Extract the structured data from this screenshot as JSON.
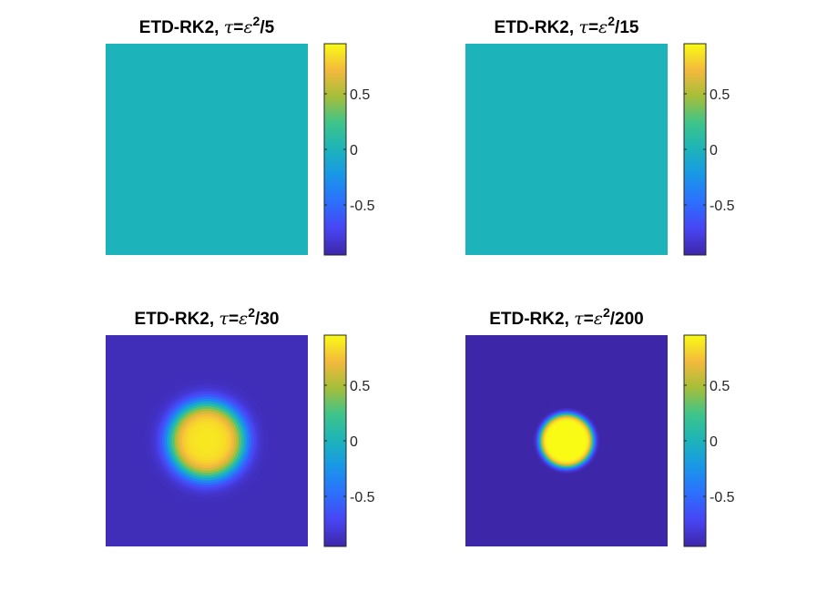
{
  "chart_data": [
    {
      "type": "heatmap",
      "title": "ETD-RK2, τ=ε²/5",
      "title_parts": {
        "prefix": "ETD-RK2, ",
        "tau": "τ",
        "eq": "=",
        "eps": "ε",
        "sup": "2",
        "suffix": "/5"
      },
      "field": {
        "background": 0.0,
        "inner_value": null,
        "inner_radius": 0,
        "interface_width": 0
      },
      "colorbar": {
        "colormap": "parula",
        "clim": [
          -0.95,
          0.95
        ],
        "ticks": [
          0.5,
          0,
          -0.5
        ],
        "tick_labels": [
          "0.5",
          "0",
          "-0.5"
        ]
      }
    },
    {
      "type": "heatmap",
      "title": "ETD-RK2, τ=ε²/15",
      "title_parts": {
        "prefix": "ETD-RK2, ",
        "tau": "τ",
        "eq": "=",
        "eps": "ε",
        "sup": "2",
        "suffix": "/15"
      },
      "field": {
        "background": 0.0,
        "inner_value": null,
        "inner_radius": 0,
        "interface_width": 0
      },
      "colorbar": {
        "colormap": "parula",
        "clim": [
          -0.95,
          0.95
        ],
        "ticks": [
          0.5,
          0,
          -0.5
        ],
        "tick_labels": [
          "0.5",
          "0",
          "-0.5"
        ]
      }
    },
    {
      "type": "heatmap",
      "title": "ETD-RK2, τ=ε²/30",
      "title_parts": {
        "prefix": "ETD-RK2, ",
        "tau": "τ",
        "eq": "=",
        "eps": "ε",
        "sup": "2",
        "suffix": "/30"
      },
      "field": {
        "background": -0.9,
        "inner_value": 0.88,
        "inner_radius": 0.19,
        "interface_width": 0.1
      },
      "colorbar": {
        "colormap": "parula",
        "clim": [
          -0.95,
          0.95
        ],
        "ticks": [
          0.5,
          0,
          -0.5
        ],
        "tick_labels": [
          "0.5",
          "0",
          "-0.5"
        ]
      }
    },
    {
      "type": "heatmap",
      "title": "ETD-RK2, τ=ε²/200",
      "title_parts": {
        "prefix": "ETD-RK2, ",
        "tau": "τ",
        "eq": "=",
        "eps": "ε",
        "sup": "2",
        "suffix": "/200"
      },
      "field": {
        "background": -0.98,
        "inner_value": 0.97,
        "inner_radius": 0.135,
        "interface_width": 0.035
      },
      "colorbar": {
        "colormap": "parula",
        "clim": [
          -0.95,
          0.95
        ],
        "ticks": [
          0.5,
          0,
          -0.5
        ],
        "tick_labels": [
          "0.5",
          "0",
          "-0.5"
        ]
      }
    }
  ]
}
